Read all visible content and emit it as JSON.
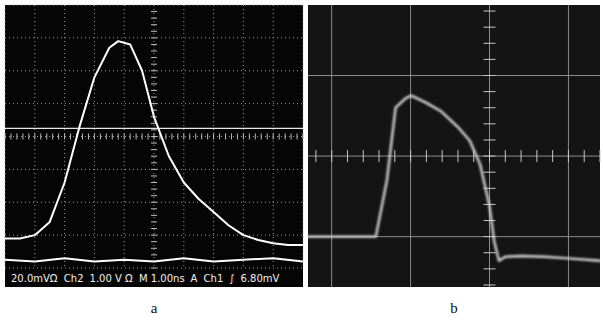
{
  "chart_data": [
    {
      "type": "line",
      "title": "a",
      "annotations": [
        "20.0mVΩ",
        "Ch2",
        "1.00 V Ω",
        "M 1.00ns",
        "A",
        "Ch1",
        "∫",
        "6.80mV"
      ],
      "xlim": [
        0,
        10
      ],
      "ylim": [
        0,
        8
      ],
      "xticks": [
        0,
        1,
        2,
        3,
        4,
        5,
        6,
        7,
        8,
        9,
        10
      ],
      "yticks": [
        0,
        1,
        2,
        3,
        4,
        5,
        6,
        7,
        8
      ],
      "grid": true,
      "tick_labels": false,
      "trigger_level": 4.25,
      "series": [
        {
          "color": "#ffffff",
          "x": [
            0,
            0.5,
            1,
            1.5,
            2,
            2.5,
            3,
            3.5,
            3.8,
            4.2,
            4.6,
            5,
            5.5,
            6,
            6.5,
            7,
            7.5,
            8,
            8.5,
            9,
            9.5,
            10
          ],
          "values": [
            0.9,
            0.9,
            1.0,
            1.4,
            2.6,
            4.3,
            5.8,
            6.7,
            6.9,
            6.8,
            6.0,
            4.6,
            3.4,
            2.6,
            2.1,
            1.7,
            1.3,
            1.0,
            0.85,
            0.75,
            0.7,
            0.7
          ]
        },
        {
          "color": "#ffffff",
          "x": [
            0,
            1,
            2,
            3,
            4,
            5,
            6,
            7,
            8,
            9,
            10
          ],
          "values": [
            0.25,
            0.2,
            0.3,
            0.2,
            0.25,
            0.2,
            0.3,
            0.2,
            0.25,
            0.3,
            0.2
          ]
        }
      ]
    },
    {
      "type": "line",
      "title": "b",
      "xlim": [
        -2.3,
        1.4
      ],
      "ylim": [
        -1.625,
        1.875
      ],
      "xticks": [
        -2,
        -1,
        0,
        1
      ],
      "yticks": [
        -1,
        0,
        1
      ],
      "grid": true,
      "tick_labels": false,
      "series": [
        {
          "color": "#d8d8d8",
          "x": [
            -2.3,
            -1.9,
            -1.6,
            -1.44,
            -1.3,
            -1.19,
            -1.06,
            -0.99,
            -0.8,
            -0.62,
            -0.4,
            -0.25,
            -0.12,
            0,
            0.06,
            0.12,
            0.2,
            0.4,
            0.7,
            1.0,
            1.4
          ],
          "values": [
            -1.0,
            -1.0,
            -1.0,
            -1.0,
            -0.3,
            0.6,
            0.72,
            0.75,
            0.66,
            0.56,
            0.36,
            0.19,
            -0.1,
            -0.62,
            -1.06,
            -1.3,
            -1.25,
            -1.24,
            -1.25,
            -1.27,
            -1.3
          ]
        }
      ]
    }
  ]
}
